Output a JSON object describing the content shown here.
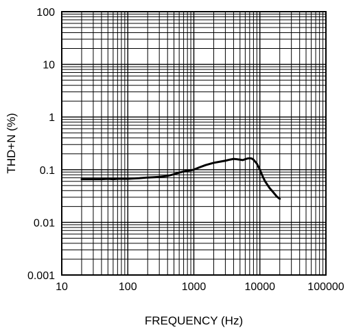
{
  "chart_data": {
    "type": "line",
    "title": "",
    "xlabel": "FREQUENCY (Hz)",
    "ylabel": "THD+N (%)",
    "x_scale": "log",
    "y_scale": "log",
    "xlim": [
      10,
      100000
    ],
    "ylim": [
      0.001,
      100
    ],
    "x_ticks": [
      "10",
      "100",
      "1000",
      "10000",
      "100000"
    ],
    "y_ticks": [
      "100",
      "10",
      "1",
      "0.1",
      "0.01",
      "0.001"
    ],
    "grid": true,
    "line_color": "#000000",
    "series": [
      {
        "points": [
          [
            20,
            0.066
          ],
          [
            30,
            0.066
          ],
          [
            40,
            0.066
          ],
          [
            50,
            0.067
          ],
          [
            60,
            0.066
          ],
          [
            70,
            0.067
          ],
          [
            80,
            0.067
          ],
          [
            100,
            0.067
          ],
          [
            120,
            0.068
          ],
          [
            150,
            0.069
          ],
          [
            200,
            0.071
          ],
          [
            250,
            0.072
          ],
          [
            300,
            0.073
          ],
          [
            400,
            0.076
          ],
          [
            500,
            0.082
          ],
          [
            600,
            0.088
          ],
          [
            700,
            0.092
          ],
          [
            800,
            0.095
          ],
          [
            1000,
            0.1
          ],
          [
            1200,
            0.11
          ],
          [
            1500,
            0.122
          ],
          [
            2000,
            0.135
          ],
          [
            2500,
            0.142
          ],
          [
            3000,
            0.148
          ],
          [
            3500,
            0.155
          ],
          [
            4000,
            0.16
          ],
          [
            4500,
            0.158
          ],
          [
            5000,
            0.155
          ],
          [
            5500,
            0.152
          ],
          [
            6000,
            0.158
          ],
          [
            6500,
            0.163
          ],
          [
            7000,
            0.165
          ],
          [
            7500,
            0.163
          ],
          [
            8000,
            0.155
          ],
          [
            9000,
            0.13
          ],
          [
            10000,
            0.1
          ],
          [
            11000,
            0.075
          ],
          [
            12000,
            0.06
          ],
          [
            14000,
            0.045
          ],
          [
            16000,
            0.037
          ],
          [
            18000,
            0.031
          ],
          [
            20000,
            0.028
          ]
        ]
      }
    ]
  }
}
